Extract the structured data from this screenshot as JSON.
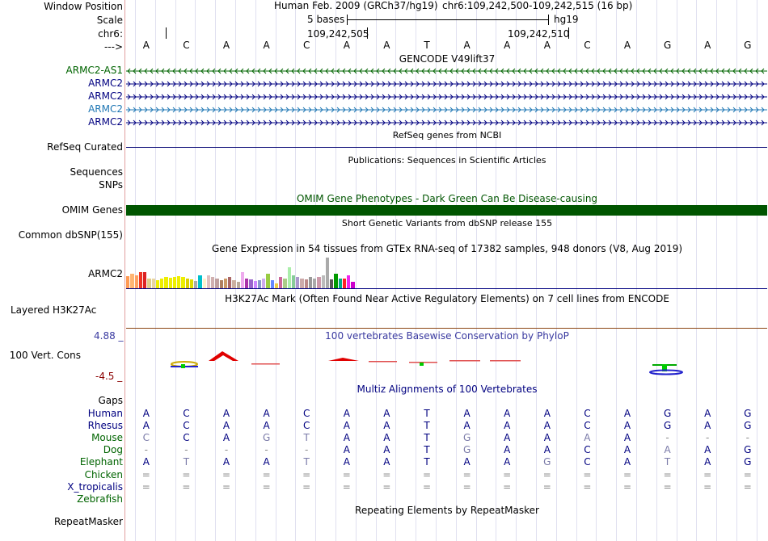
{
  "header": {
    "labels": [
      "Window Position",
      "Scale",
      "chr6:",
      "--->"
    ],
    "assembly": "Human Feb. 2009 (GRCh37/hg19)",
    "position": "chr6:109,242,500-109,242,515 (16 bp)",
    "scale_text": "5 bases",
    "scale_db": "hg19",
    "coord1": "109,242,505",
    "coord2": "109,242,510",
    "bases": [
      "A",
      "C",
      "A",
      "A",
      "C",
      "A",
      "A",
      "T",
      "A",
      "A",
      "A",
      "C",
      "A",
      "G",
      "A",
      "G"
    ]
  },
  "tracks": {
    "gencode": {
      "title": "GENCODE V49lift37",
      "rows": [
        {
          "name": "ARMC2-AS1",
          "color": "#006400",
          "dir": "<"
        },
        {
          "name": "ARMC2",
          "color": "#000080",
          "dir": ">"
        },
        {
          "name": "ARMC2",
          "color": "#000080",
          "dir": ">"
        },
        {
          "name": "ARMC2",
          "color": "#1f77b4",
          "dir": ">"
        },
        {
          "name": "ARMC2",
          "color": "#000080",
          "dir": ">"
        }
      ]
    },
    "refseq": {
      "title": "RefSeq genes from NCBI",
      "label": "RefSeq Curated",
      "color": "#0c0c78"
    },
    "pubs": {
      "title": "Publications: Sequences in Scientific Articles",
      "labels": [
        "Sequences",
        "SNPs"
      ]
    },
    "omim": {
      "title": "OMIM Gene Phenotypes - Dark Green Can Be Disease-causing",
      "label": "OMIM Genes",
      "color": "#005500"
    },
    "dbsnp": {
      "title": "Short Genetic Variants from dbSNP release 155",
      "label": "Common dbSNP(155)"
    },
    "gtex": {
      "title": "Gene Expression in 54 tissues from GTEx RNA-seq of 17382 samples, 948 donors (V8, Aug 2019)",
      "label": "ARMC2",
      "bars": [
        0.38,
        0.45,
        0.4,
        0.5,
        0.5,
        0.3,
        0.3,
        0.25,
        0.3,
        0.35,
        0.33,
        0.35,
        0.38,
        0.36,
        0.3,
        0.28,
        0.22,
        0.4,
        0.3,
        0.4,
        0.35,
        0.3,
        0.25,
        0.3,
        0.35,
        0.25,
        0.2,
        0.5,
        0.3,
        0.28,
        0.22,
        0.25,
        0.3,
        0.45,
        0.25,
        0.15,
        0.35,
        0.3,
        0.65,
        0.4,
        0.35,
        0.3,
        0.28,
        0.35,
        0.3,
        0.35,
        0.4,
        0.95,
        0.28,
        0.45,
        0.3,
        0.3,
        0.4,
        0.2
      ],
      "colors": [
        "#ff9a52",
        "#ffb573",
        "#ffa060",
        "#ee3322",
        "#dd2222",
        "#e0cc88",
        "#e8d5a0",
        "#eeee00",
        "#eeee00",
        "#eeee00",
        "#eeee00",
        "#eeee00",
        "#eeee00",
        "#eeee00",
        "#ddd000",
        "#dddd00",
        "#aaaaaa",
        "#00c0cc",
        "#fff0cc",
        "#e0c0c0",
        "#d0b0b0",
        "#c0a0a0",
        "#b08060",
        "#cc9966",
        "#aa6666",
        "#ccb0a0",
        "#bbaa99",
        "#eeaaee",
        "#aa33aa",
        "#9966cc",
        "#cc88ff",
        "#8899cc",
        "#ccaaee",
        "#99cc44",
        "#6688ff",
        "#eecc44",
        "#cc6699",
        "#aacc88",
        "#aaeeaa",
        "#88cc99",
        "#aa99cc",
        "#ccaaaa",
        "#bb8888",
        "#999999",
        "#aaaaaa",
        "#cc99aa",
        "#bbbbbb",
        "#aaaaaa",
        "#555555",
        "#009900",
        "#00aa88",
        "#ff2222",
        "#ee22ee",
        "#cc00cc"
      ]
    },
    "h3k27ac": {
      "title": "H3K27Ac Mark (Often Found Near Active Regulatory Elements) on 7 cell lines from ENCODE",
      "label": "Layered H3K27Ac"
    },
    "cons": {
      "title": "100 vertebrates Basewise Conservation by PhyloP",
      "label": "100 Vert. Cons",
      "max": "4.88 _",
      "min": "-4.5 _",
      "color": "#3a3aa0"
    },
    "multiz": {
      "title": "Multiz Alignments of 100 Vertebrates",
      "gaps_label": "Gaps",
      "species": [
        {
          "name": "Human",
          "color": "#000080",
          "bases": [
            "A",
            "C",
            "A",
            "A",
            "C",
            "A",
            "A",
            "T",
            "A",
            "A",
            "A",
            "C",
            "A",
            "G",
            "A",
            "G"
          ]
        },
        {
          "name": "Rhesus",
          "color": "#000080",
          "bases": [
            "A",
            "C",
            "A",
            "A",
            "C",
            "A",
            "A",
            "T",
            "A",
            "A",
            "A",
            "C",
            "A",
            "G",
            "A",
            "G"
          ]
        },
        {
          "name": "Mouse",
          "color": "#006400",
          "bases": [
            "C",
            "C",
            "A",
            "G",
            "T",
            "A",
            "A",
            "T",
            "G",
            "A",
            "A",
            "A",
            "A",
            "-",
            "-",
            "-"
          ]
        },
        {
          "name": "Dog",
          "color": "#006400",
          "bases": [
            "-",
            "-",
            "-",
            "-",
            "-",
            "A",
            "A",
            "T",
            "G",
            "A",
            "A",
            "C",
            "A",
            "A",
            "A",
            "G"
          ]
        },
        {
          "name": "Elephant",
          "color": "#006400",
          "bases": [
            "A",
            "T",
            "A",
            "A",
            "T",
            "A",
            "A",
            "T",
            "A",
            "A",
            "G",
            "C",
            "A",
            "T",
            "A",
            "G"
          ]
        },
        {
          "name": "Chicken",
          "color": "#006400",
          "bases": [
            "=",
            "=",
            "=",
            "=",
            "=",
            "=",
            "=",
            "=",
            "=",
            "=",
            "=",
            "=",
            "=",
            "=",
            "=",
            "="
          ]
        },
        {
          "name": "X_tropicalis",
          "color": "#000080",
          "bases": [
            "=",
            "=",
            "=",
            "=",
            "=",
            "=",
            "=",
            "=",
            "=",
            "=",
            "=",
            "=",
            "=",
            "=",
            "=",
            "="
          ]
        },
        {
          "name": "Zebrafish",
          "color": "#006400",
          "bases": [
            "",
            "",
            "",
            "",
            "",
            "",
            "",
            "",
            "",
            "",
            "",
            "",
            "",
            "",
            "",
            ""
          ]
        }
      ]
    },
    "rmsk": {
      "title": "Repeating Elements by RepeatMasker",
      "label": "RepeatMasker"
    }
  }
}
